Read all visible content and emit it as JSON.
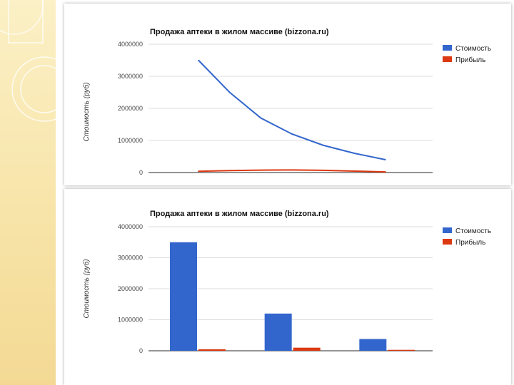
{
  "colors": {
    "series1": "#3366cc",
    "series2": "#dc3912",
    "grid": "#d0d0d0"
  },
  "chart_data": [
    {
      "type": "line",
      "title": "Продажа аптеки в жилом массиве (bizzona.ru)",
      "xlabel": "",
      "ylabel": "Стоимость (руб)",
      "ylim": [
        0,
        4000000
      ],
      "yticks": [
        "4000000",
        "3000000",
        "2000000",
        "1000000",
        "0"
      ],
      "x": [
        1,
        2,
        3,
        4,
        5,
        6,
        7
      ],
      "series": [
        {
          "name": "Стоимость",
          "values": [
            3500000,
            2500000,
            1700000,
            1200000,
            850000,
            600000,
            400000
          ]
        },
        {
          "name": "Прибыль",
          "values": [
            40000,
            60000,
            75000,
            80000,
            70000,
            45000,
            20000
          ]
        }
      ],
      "grid": true,
      "legend": "top-right"
    },
    {
      "type": "bar",
      "title": "Продажа аптеки в жилом массиве (bizzona.ru)",
      "xlabel": "",
      "ylabel": "Стоимость (руб)",
      "ylim": [
        0,
        4000000
      ],
      "yticks": [
        "4000000",
        "3000000",
        "2000000",
        "1000000",
        "0"
      ],
      "categories": [
        "",
        "",
        ""
      ],
      "series": [
        {
          "name": "Стоимость",
          "values": [
            3500000,
            1200000,
            380000
          ]
        },
        {
          "name": "Прибыль",
          "values": [
            50000,
            100000,
            30000
          ]
        }
      ],
      "grid": true,
      "legend": "top-right"
    }
  ]
}
